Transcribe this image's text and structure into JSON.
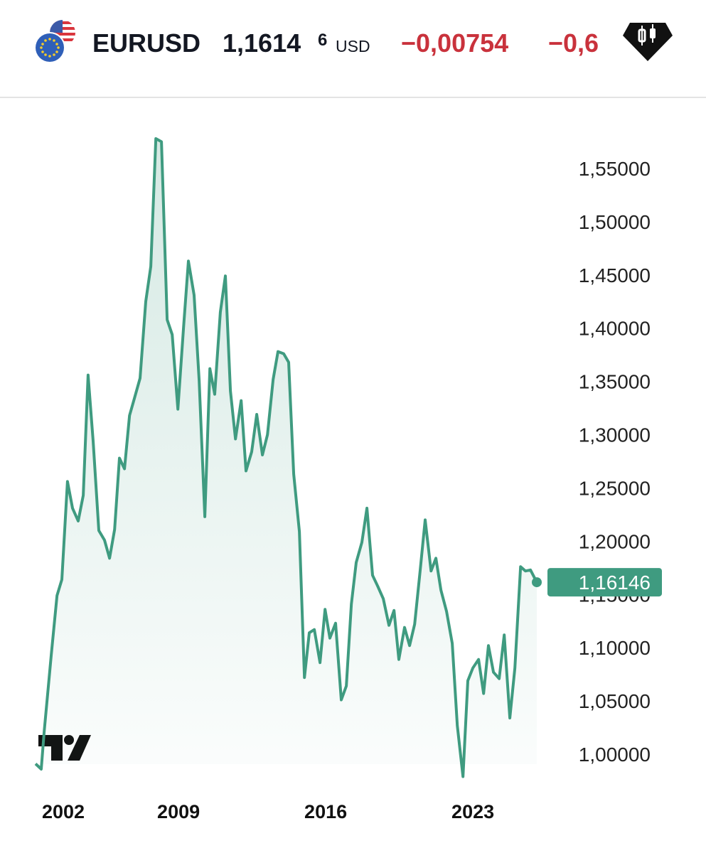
{
  "header": {
    "symbol": "EURUSD",
    "price": "1,1614",
    "price_last_digit": "6",
    "currency": "USD",
    "change": "−0,00754",
    "change_percent": "−0,6"
  },
  "chart_data": {
    "type": "area",
    "x": [
      2002.2,
      2002.47,
      2002.61,
      2002.95,
      2003.22,
      2003.45,
      2003.72,
      2003.96,
      2004.23,
      2004.47,
      2004.7,
      2004.94,
      2005.21,
      2005.48,
      2005.72,
      2005.96,
      2006.19,
      2006.43,
      2006.67,
      2006.9,
      2007.17,
      2007.44,
      2007.68,
      2007.92,
      2008.19,
      2008.46,
      2008.7,
      2008.97,
      2009.24,
      2009.47,
      2009.74,
      2009.98,
      2010.25,
      2010.49,
      2010.72,
      2010.99,
      2011.23,
      2011.47,
      2011.71,
      2011.98,
      2012.21,
      2012.48,
      2012.72,
      2012.99,
      2013.23,
      2013.5,
      2013.73,
      2014.0,
      2014.24,
      2014.48,
      2014.75,
      2014.99,
      2015.22,
      2015.46,
      2015.73,
      2015.97,
      2016.2,
      2016.47,
      2016.74,
      2016.98,
      2017.22,
      2017.45,
      2017.72,
      2017.96,
      2018.23,
      2018.47,
      2018.74,
      2019.01,
      2019.25,
      2019.48,
      2019.75,
      2019.99,
      2020.23,
      2020.5,
      2020.73,
      2021.01,
      2021.24,
      2021.48,
      2021.75,
      2022.02,
      2022.26,
      2022.53,
      2022.76,
      2023.0,
      2023.27,
      2023.51,
      2023.74,
      2023.98,
      2024.25,
      2024.49,
      2024.76,
      2025.0,
      2025.27,
      2025.5,
      2025.74,
      2026.04
    ],
    "values": [
      0.991,
      0.986,
      1.021,
      1.094,
      1.149,
      1.164,
      1.256,
      1.231,
      1.219,
      1.243,
      1.356,
      1.294,
      1.21,
      1.201,
      1.184,
      1.211,
      1.278,
      1.268,
      1.318,
      1.334,
      1.353,
      1.425,
      1.458,
      1.578,
      1.575,
      1.408,
      1.394,
      1.324,
      1.401,
      1.463,
      1.431,
      1.351,
      1.223,
      1.362,
      1.338,
      1.415,
      1.449,
      1.341,
      1.296,
      1.332,
      1.266,
      1.284,
      1.319,
      1.281,
      1.3,
      1.352,
      1.378,
      1.376,
      1.368,
      1.263,
      1.209,
      1.072,
      1.114,
      1.117,
      1.086,
      1.136,
      1.109,
      1.123,
      1.051,
      1.064,
      1.141,
      1.18,
      1.199,
      1.231,
      1.168,
      1.158,
      1.146,
      1.121,
      1.135,
      1.089,
      1.119,
      1.102,
      1.122,
      1.174,
      1.22,
      1.172,
      1.184,
      1.154,
      1.134,
      1.104,
      1.027,
      0.979,
      1.069,
      1.081,
      1.089,
      1.057,
      1.102,
      1.077,
      1.071,
      1.112,
      1.034,
      1.081,
      1.176,
      1.172,
      1.173,
      1.16146
    ],
    "color": "#3f9b80",
    "current": {
      "value": 1.16146,
      "label": "1,16146"
    },
    "xlim": [
      2002.2,
      2026.04
    ],
    "xticks": [
      2002,
      2009,
      2016,
      2023
    ],
    "ylim": [
      0.974,
      1.608
    ],
    "yticks": [
      {
        "value": 1.0,
        "label": "1,00000"
      },
      {
        "value": 1.05,
        "label": "1,05000"
      },
      {
        "value": 1.1,
        "label": "1,10000"
      },
      {
        "value": 1.15,
        "label": "1,15000"
      },
      {
        "value": 1.2,
        "label": "1,20000"
      },
      {
        "value": 1.25,
        "label": "1,25000"
      },
      {
        "value": 1.3,
        "label": "1,30000"
      },
      {
        "value": 1.35,
        "label": "1,35000"
      },
      {
        "value": 1.4,
        "label": "1,40000"
      },
      {
        "value": 1.45,
        "label": "1,45000"
      },
      {
        "value": 1.5,
        "label": "1,50000"
      },
      {
        "value": 1.55,
        "label": "1,55000"
      }
    ],
    "grid": false
  }
}
